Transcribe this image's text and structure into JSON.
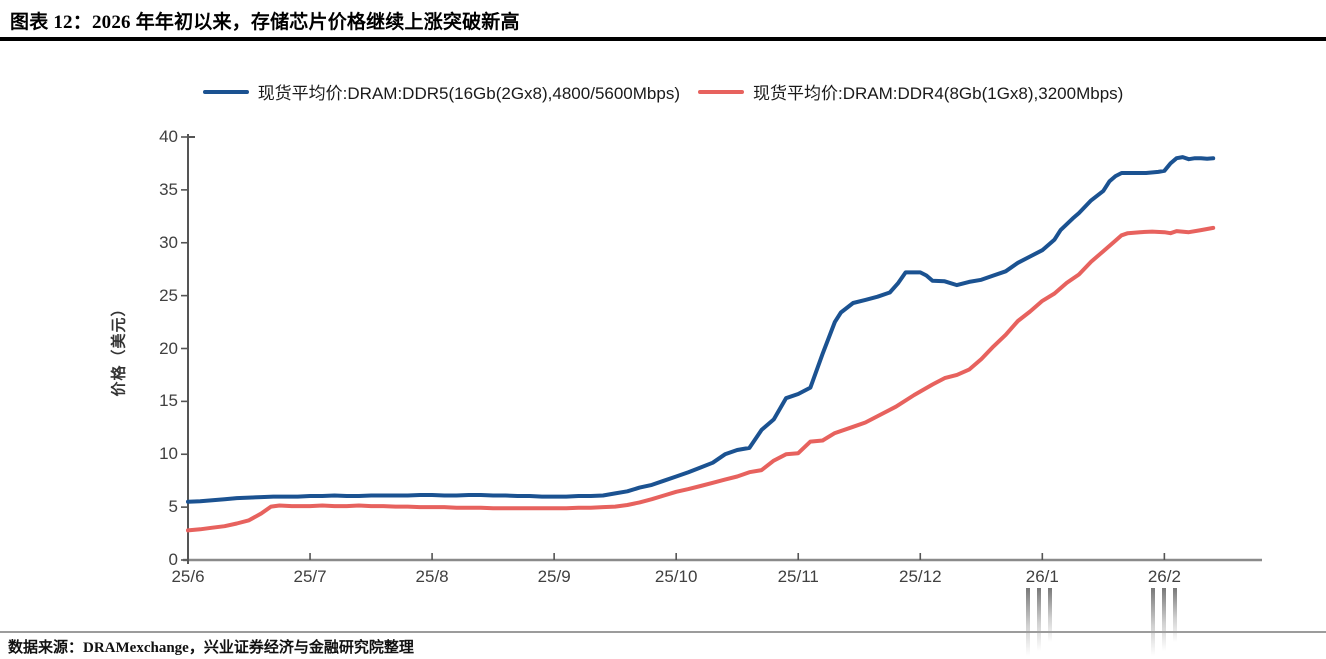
{
  "title": "图表 12：2026 年年初以来，存储芯片价格继续上涨突破新高",
  "footer": "数据来源：DRAMexchange，兴业证券经济与金融研究院整理",
  "colors": {
    "ddr5_blue": "#1b5291",
    "ddr4_red": "#e7625e",
    "axis": "#555555",
    "axis_baseline": "#8a8a8a",
    "tick_text": "#404040"
  },
  "chart_data": {
    "type": "line",
    "title": "",
    "xlabel": "",
    "ylabel": "价格（美元）",
    "ylim": [
      0,
      40
    ],
    "y_ticks": [
      0,
      5,
      10,
      15,
      20,
      25,
      30,
      35,
      40
    ],
    "x_tick_labels": [
      "25/6",
      "25/7",
      "25/8",
      "25/9",
      "25/10",
      "25/11",
      "25/12",
      "26/1",
      "26/2"
    ],
    "x_unit": "months since 25/6",
    "xlim_months": [
      0,
      8.8
    ],
    "grid": false,
    "legend_position": "top-center",
    "series": [
      {
        "name": "现货平均价:DRAM:DDR5(16Gb(2Gx8),4800/5600Mbps)",
        "color": "#1b5291",
        "points": [
          [
            0,
            5.5
          ],
          [
            0.1,
            5.55
          ],
          [
            0.2,
            5.65
          ],
          [
            0.3,
            5.75
          ],
          [
            0.4,
            5.85
          ],
          [
            0.5,
            5.9
          ],
          [
            0.6,
            5.95
          ],
          [
            0.7,
            6.0
          ],
          [
            0.8,
            6.0
          ],
          [
            0.9,
            6.0
          ],
          [
            1.0,
            6.05
          ],
          [
            1.1,
            6.05
          ],
          [
            1.2,
            6.1
          ],
          [
            1.3,
            6.05
          ],
          [
            1.4,
            6.05
          ],
          [
            1.5,
            6.1
          ],
          [
            1.6,
            6.1
          ],
          [
            1.7,
            6.1
          ],
          [
            1.8,
            6.1
          ],
          [
            1.9,
            6.15
          ],
          [
            2.0,
            6.15
          ],
          [
            2.1,
            6.1
          ],
          [
            2.2,
            6.1
          ],
          [
            2.3,
            6.15
          ],
          [
            2.4,
            6.15
          ],
          [
            2.5,
            6.1
          ],
          [
            2.6,
            6.1
          ],
          [
            2.7,
            6.05
          ],
          [
            2.8,
            6.05
          ],
          [
            2.9,
            6.0
          ],
          [
            3.0,
            6.0
          ],
          [
            3.1,
            6.0
          ],
          [
            3.2,
            6.05
          ],
          [
            3.3,
            6.05
          ],
          [
            3.4,
            6.1
          ],
          [
            3.5,
            6.3
          ],
          [
            3.6,
            6.5
          ],
          [
            3.7,
            6.85
          ],
          [
            3.8,
            7.1
          ],
          [
            3.9,
            7.5
          ],
          [
            4.0,
            7.9
          ],
          [
            4.1,
            8.3
          ],
          [
            4.2,
            8.75
          ],
          [
            4.3,
            9.2
          ],
          [
            4.4,
            10.0
          ],
          [
            4.5,
            10.4
          ],
          [
            4.6,
            10.6
          ],
          [
            4.7,
            12.3
          ],
          [
            4.8,
            13.3
          ],
          [
            4.9,
            15.3
          ],
          [
            5.0,
            15.7
          ],
          [
            5.1,
            16.3
          ],
          [
            5.2,
            19.5
          ],
          [
            5.3,
            22.5
          ],
          [
            5.35,
            23.4
          ],
          [
            5.45,
            24.3
          ],
          [
            5.55,
            24.6
          ],
          [
            5.65,
            24.9
          ],
          [
            5.75,
            25.3
          ],
          [
            5.82,
            26.2
          ],
          [
            5.88,
            27.2
          ],
          [
            6.0,
            27.2
          ],
          [
            6.05,
            26.9
          ],
          [
            6.1,
            26.4
          ],
          [
            6.2,
            26.35
          ],
          [
            6.3,
            26.0
          ],
          [
            6.4,
            26.3
          ],
          [
            6.5,
            26.5
          ],
          [
            6.6,
            26.9
          ],
          [
            6.7,
            27.3
          ],
          [
            6.8,
            28.1
          ],
          [
            6.9,
            28.7
          ],
          [
            7.0,
            29.3
          ],
          [
            7.1,
            30.3
          ],
          [
            7.15,
            31.2
          ],
          [
            7.25,
            32.3
          ],
          [
            7.3,
            32.8
          ],
          [
            7.4,
            34.0
          ],
          [
            7.5,
            34.9
          ],
          [
            7.55,
            35.8
          ],
          [
            7.6,
            36.3
          ],
          [
            7.65,
            36.6
          ],
          [
            7.75,
            36.6
          ],
          [
            7.85,
            36.6
          ],
          [
            7.95,
            36.7
          ],
          [
            8.0,
            36.8
          ],
          [
            8.05,
            37.5
          ],
          [
            8.1,
            38.0
          ],
          [
            8.15,
            38.1
          ],
          [
            8.2,
            37.9
          ],
          [
            8.25,
            38.0
          ],
          [
            8.3,
            38.0
          ],
          [
            8.35,
            37.95
          ],
          [
            8.4,
            38.0
          ]
        ]
      },
      {
        "name": "现货平均价:DRAM:DDR4(8Gb(1Gx8),3200Mbps)",
        "color": "#e7625e",
        "points": [
          [
            0,
            2.8
          ],
          [
            0.1,
            2.9
          ],
          [
            0.2,
            3.05
          ],
          [
            0.3,
            3.2
          ],
          [
            0.4,
            3.45
          ],
          [
            0.5,
            3.75
          ],
          [
            0.6,
            4.4
          ],
          [
            0.68,
            5.05
          ],
          [
            0.75,
            5.15
          ],
          [
            0.85,
            5.1
          ],
          [
            1.0,
            5.1
          ],
          [
            1.1,
            5.15
          ],
          [
            1.2,
            5.1
          ],
          [
            1.3,
            5.1
          ],
          [
            1.4,
            5.15
          ],
          [
            1.5,
            5.1
          ],
          [
            1.6,
            5.1
          ],
          [
            1.7,
            5.05
          ],
          [
            1.8,
            5.05
          ],
          [
            1.9,
            5.0
          ],
          [
            2.0,
            5.0
          ],
          [
            2.1,
            5.0
          ],
          [
            2.2,
            4.95
          ],
          [
            2.3,
            4.95
          ],
          [
            2.4,
            4.95
          ],
          [
            2.5,
            4.9
          ],
          [
            2.6,
            4.9
          ],
          [
            2.7,
            4.9
          ],
          [
            2.8,
            4.9
          ],
          [
            2.9,
            4.9
          ],
          [
            3.0,
            4.9
          ],
          [
            3.1,
            4.9
          ],
          [
            3.2,
            4.95
          ],
          [
            3.3,
            4.95
          ],
          [
            3.4,
            5.0
          ],
          [
            3.5,
            5.05
          ],
          [
            3.6,
            5.2
          ],
          [
            3.7,
            5.45
          ],
          [
            3.8,
            5.75
          ],
          [
            3.9,
            6.1
          ],
          [
            4.0,
            6.45
          ],
          [
            4.1,
            6.7
          ],
          [
            4.2,
            7.0
          ],
          [
            4.3,
            7.3
          ],
          [
            4.4,
            7.6
          ],
          [
            4.5,
            7.9
          ],
          [
            4.6,
            8.3
          ],
          [
            4.7,
            8.5
          ],
          [
            4.8,
            9.4
          ],
          [
            4.9,
            10.0
          ],
          [
            5.0,
            10.1
          ],
          [
            5.1,
            11.2
          ],
          [
            5.2,
            11.3
          ],
          [
            5.3,
            12.0
          ],
          [
            5.45,
            12.6
          ],
          [
            5.55,
            13.0
          ],
          [
            5.7,
            13.9
          ],
          [
            5.8,
            14.5
          ],
          [
            5.95,
            15.6
          ],
          [
            6.1,
            16.6
          ],
          [
            6.2,
            17.2
          ],
          [
            6.3,
            17.5
          ],
          [
            6.4,
            18.0
          ],
          [
            6.5,
            19.0
          ],
          [
            6.6,
            20.2
          ],
          [
            6.7,
            21.3
          ],
          [
            6.8,
            22.6
          ],
          [
            6.9,
            23.5
          ],
          [
            7.0,
            24.5
          ],
          [
            7.1,
            25.2
          ],
          [
            7.2,
            26.2
          ],
          [
            7.3,
            27.0
          ],
          [
            7.4,
            28.2
          ],
          [
            7.5,
            29.2
          ],
          [
            7.6,
            30.2
          ],
          [
            7.65,
            30.7
          ],
          [
            7.7,
            30.9
          ],
          [
            7.8,
            31.0
          ],
          [
            7.9,
            31.05
          ],
          [
            8.0,
            31.0
          ],
          [
            8.05,
            30.9
          ],
          [
            8.1,
            31.1
          ],
          [
            8.2,
            31.0
          ],
          [
            8.3,
            31.2
          ],
          [
            8.35,
            31.3
          ],
          [
            8.4,
            31.4
          ]
        ]
      }
    ]
  }
}
